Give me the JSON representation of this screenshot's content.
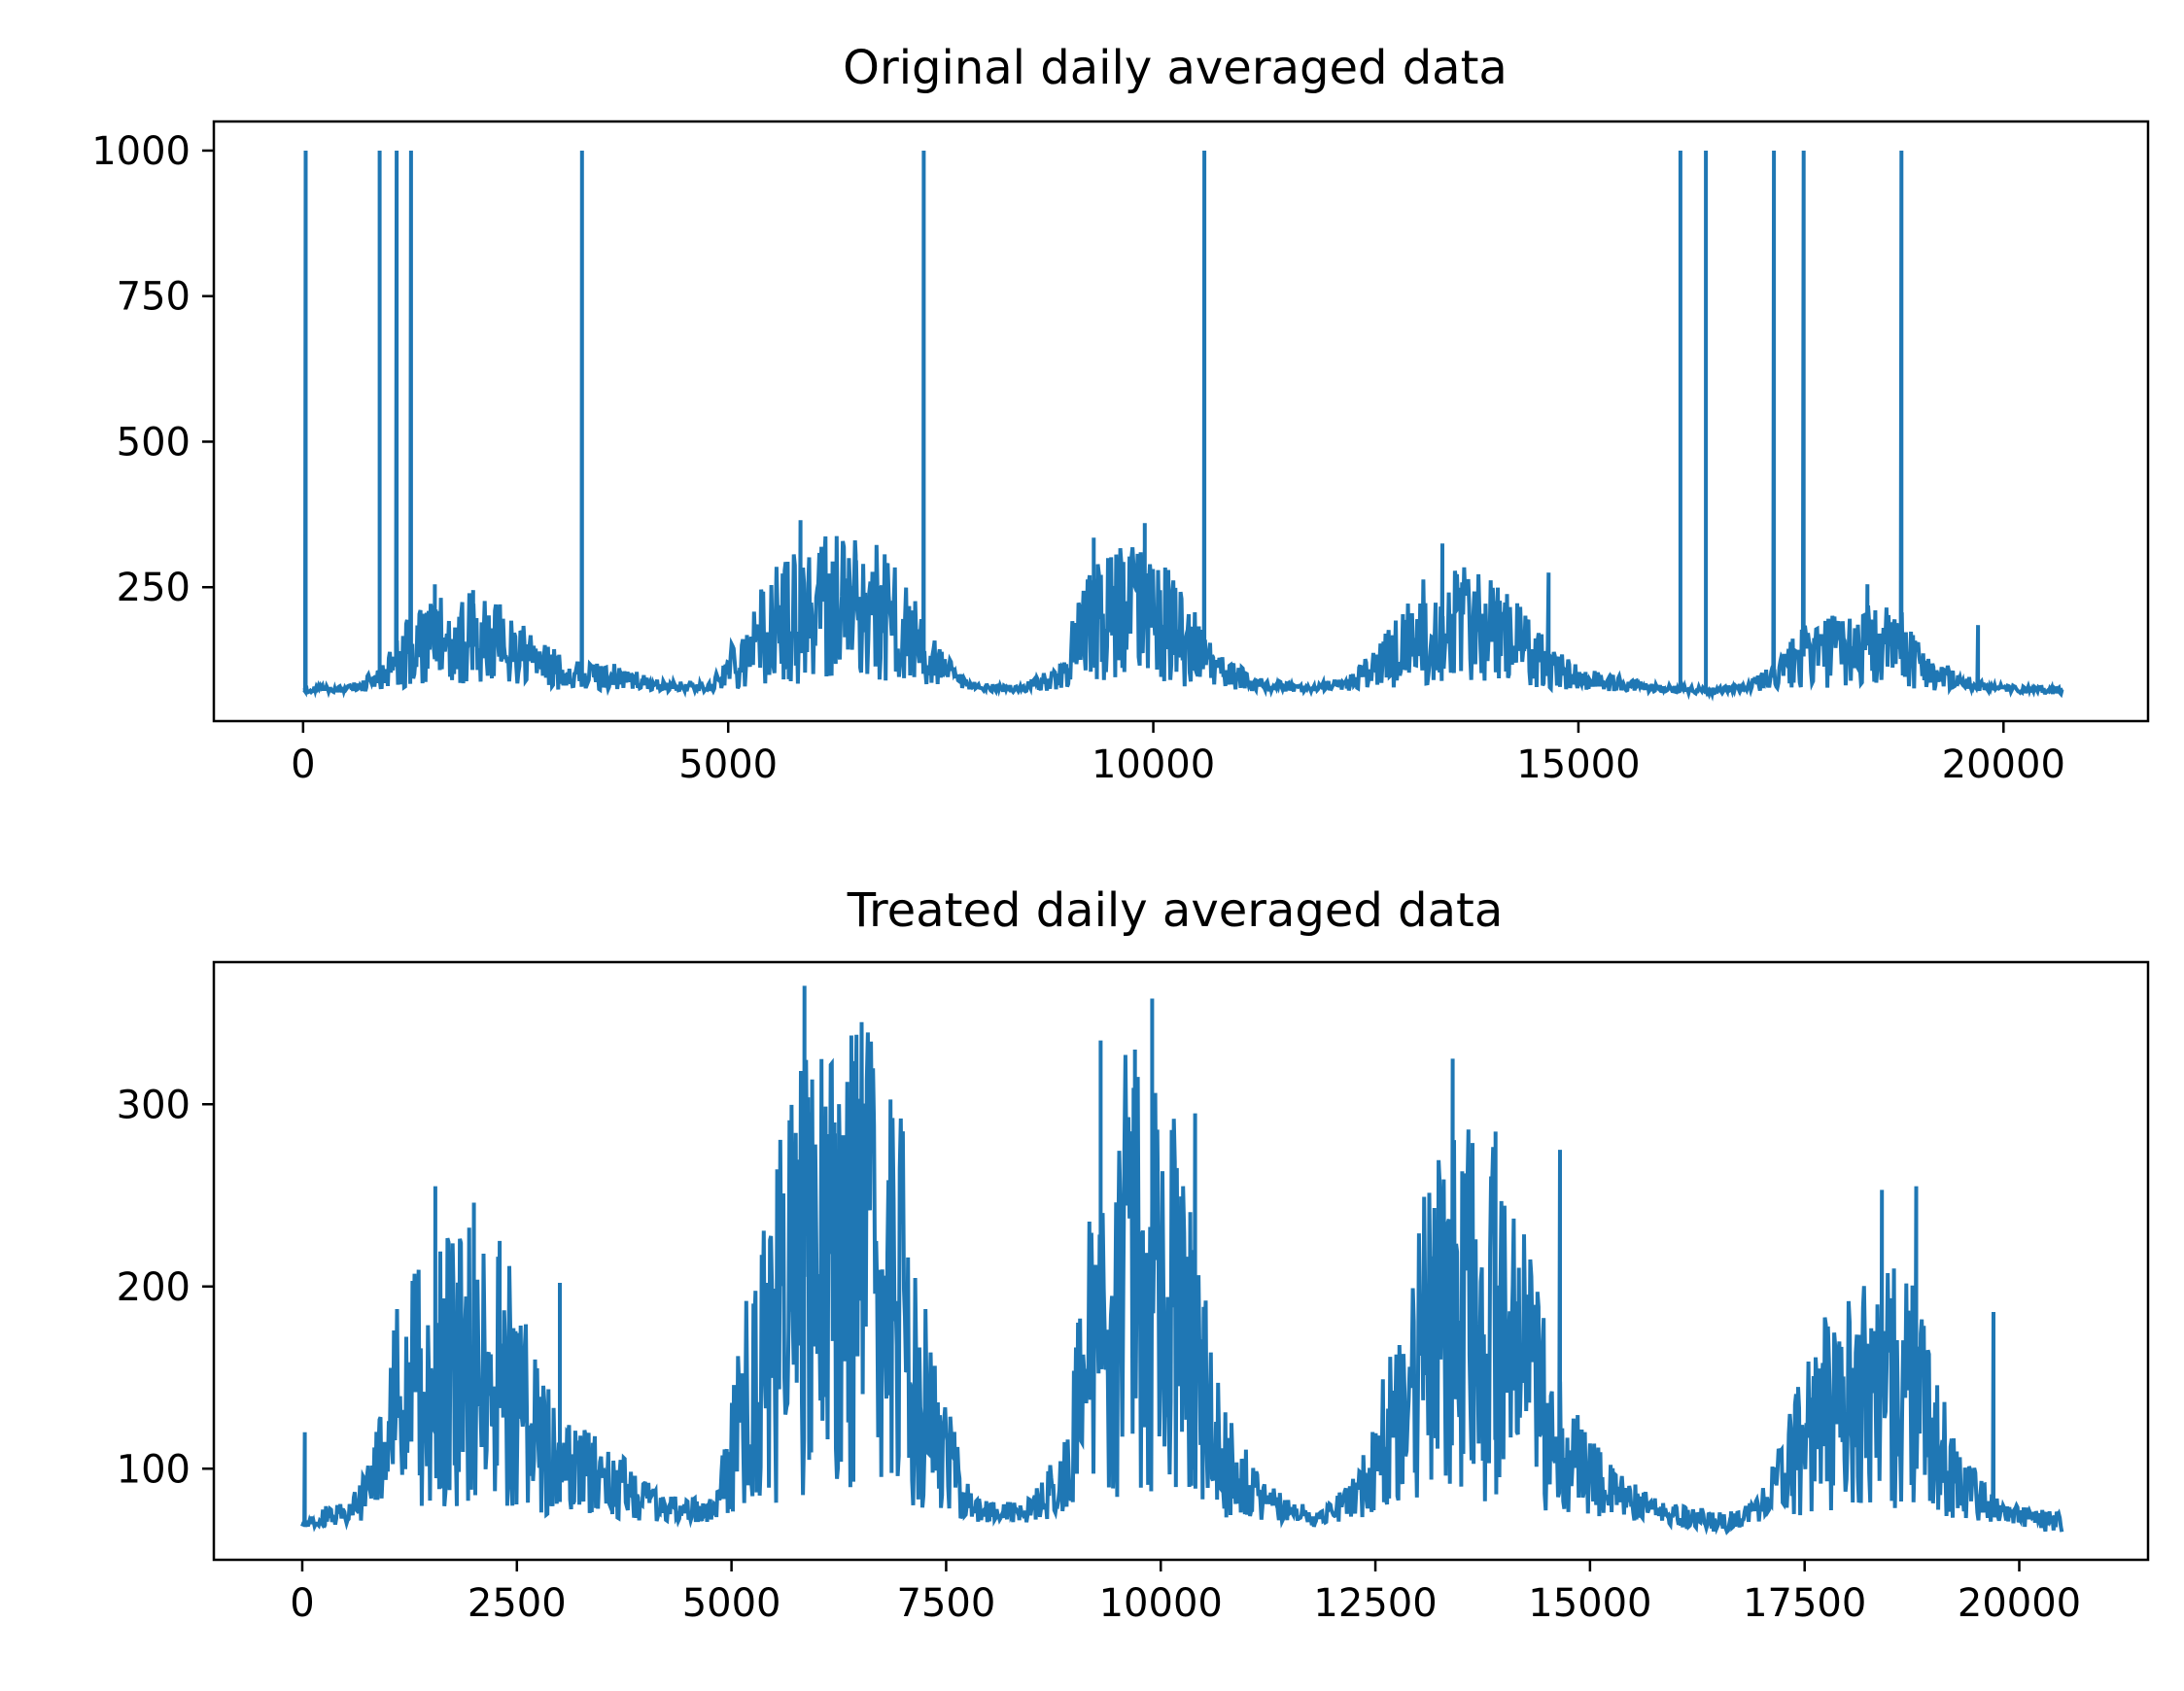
{
  "chart_data": [
    {
      "type": "line",
      "title": "Original daily averaged data",
      "xlabel": "",
      "ylabel": "",
      "xlim": [
        -1050,
        21700
      ],
      "ylim": [
        20,
        1050
      ],
      "xticks": [
        0,
        5000,
        10000,
        15000,
        20000
      ],
      "xtick_labels": [
        "0",
        "5000",
        "10000",
        "15000",
        "20000"
      ],
      "yticks": [
        250,
        500,
        750,
        1000
      ],
      "ytick_labels": [
        "250",
        "500",
        "750",
        "1000"
      ],
      "grid": false,
      "color": "#1f77b4",
      "baseline_points": [
        [
          0,
          75
        ],
        [
          500,
          75
        ],
        [
          900,
          92
        ],
        [
          1200,
          135
        ],
        [
          1600,
          155
        ],
        [
          2000,
          160
        ],
        [
          2400,
          150
        ],
        [
          2800,
          115
        ],
        [
          3200,
          100
        ],
        [
          3700,
          95
        ],
        [
          4200,
          80
        ],
        [
          4800,
          78
        ],
        [
          5200,
          145
        ],
        [
          5600,
          190
        ],
        [
          6000,
          215
        ],
        [
          6500,
          220
        ],
        [
          7000,
          185
        ],
        [
          7400,
          120
        ],
        [
          7800,
          80
        ],
        [
          8400,
          75
        ],
        [
          8900,
          95
        ],
        [
          9200,
          175
        ],
        [
          9600,
          210
        ],
        [
          10000,
          205
        ],
        [
          10400,
          160
        ],
        [
          10700,
          110
        ],
        [
          11200,
          85
        ],
        [
          11800,
          75
        ],
        [
          12300,
          85
        ],
        [
          12700,
          120
        ],
        [
          13100,
          170
        ],
        [
          13500,
          185
        ],
        [
          13900,
          180
        ],
        [
          14300,
          150
        ],
        [
          14700,
          110
        ],
        [
          15200,
          90
        ],
        [
          15700,
          80
        ],
        [
          16200,
          75
        ],
        [
          16600,
          72
        ],
        [
          17000,
          80
        ],
        [
          17300,
          95
        ],
        [
          17600,
          130
        ],
        [
          18000,
          140
        ],
        [
          18400,
          150
        ],
        [
          18800,
          145
        ],
        [
          19200,
          100
        ],
        [
          19700,
          80
        ],
        [
          20200,
          74
        ],
        [
          20700,
          72
        ]
      ],
      "spikes": [
        [
          30,
          1000
        ],
        [
          900,
          1000
        ],
        [
          1100,
          1000
        ],
        [
          1270,
          1000
        ],
        [
          3280,
          1000
        ],
        [
          7300,
          1000
        ],
        [
          10600,
          1000
        ],
        [
          16200,
          1000
        ],
        [
          16500,
          1000
        ],
        [
          17300,
          1000
        ],
        [
          17650,
          1000
        ],
        [
          18800,
          1000
        ],
        [
          5850,
          365
        ],
        [
          9900,
          360
        ],
        [
          9300,
          335
        ],
        [
          13400,
          325
        ],
        [
          6500,
          305
        ],
        [
          14650,
          275
        ],
        [
          18400,
          255
        ],
        [
          1550,
          255
        ],
        [
          2000,
          245
        ],
        [
          19700,
          185
        ]
      ]
    },
    {
      "type": "line",
      "title": "Treated daily averaged data",
      "xlabel": "",
      "ylabel": "",
      "xlim": [
        -1030,
        21500
      ],
      "ylim": [
        50,
        378
      ],
      "xticks": [
        0,
        2500,
        5000,
        7500,
        10000,
        12500,
        15000,
        17500,
        20000
      ],
      "xtick_labels": [
        "0",
        "2500",
        "5000",
        "7500",
        "10000",
        "12500",
        "15000",
        "17500",
        "20000"
      ],
      "yticks": [
        100,
        200,
        300
      ],
      "ytick_labels": [
        "100",
        "200",
        "300"
      ],
      "grid": false,
      "color": "#1f77b4",
      "baseline_points": [
        [
          0,
          72
        ],
        [
          500,
          75
        ],
        [
          800,
          90
        ],
        [
          1100,
          135
        ],
        [
          1500,
          150
        ],
        [
          2000,
          158
        ],
        [
          2400,
          148
        ],
        [
          2800,
          115
        ],
        [
          3200,
          100
        ],
        [
          3700,
          90
        ],
        [
          4200,
          78
        ],
        [
          4800,
          77
        ],
        [
          5200,
          140
        ],
        [
          5600,
          190
        ],
        [
          6000,
          215
        ],
        [
          6500,
          220
        ],
        [
          7000,
          185
        ],
        [
          7400,
          115
        ],
        [
          7800,
          78
        ],
        [
          8400,
          75
        ],
        [
          8900,
          95
        ],
        [
          9200,
          170
        ],
        [
          9600,
          210
        ],
        [
          10000,
          205
        ],
        [
          10400,
          160
        ],
        [
          10700,
          105
        ],
        [
          11200,
          82
        ],
        [
          11800,
          73
        ],
        [
          12300,
          85
        ],
        [
          12700,
          125
        ],
        [
          13100,
          170
        ],
        [
          13500,
          185
        ],
        [
          13900,
          180
        ],
        [
          14300,
          150
        ],
        [
          14700,
          108
        ],
        [
          15200,
          88
        ],
        [
          15700,
          78
        ],
        [
          16200,
          72
        ],
        [
          16600,
          70
        ],
        [
          17000,
          80
        ],
        [
          17300,
          100
        ],
        [
          17600,
          128
        ],
        [
          18000,
          135
        ],
        [
          18400,
          148
        ],
        [
          18800,
          140
        ],
        [
          19200,
          98
        ],
        [
          19700,
          78
        ],
        [
          20200,
          72
        ],
        [
          20500,
          70
        ]
      ],
      "spikes": [
        [
          30,
          120
        ],
        [
          5850,
          365
        ],
        [
          9900,
          358
        ],
        [
          9300,
          335
        ],
        [
          13400,
          325
        ],
        [
          6500,
          303
        ],
        [
          9700,
          330
        ],
        [
          14650,
          275
        ],
        [
          18400,
          253
        ],
        [
          18800,
          255
        ],
        [
          1550,
          255
        ],
        [
          2000,
          246
        ],
        [
          19700,
          186
        ],
        [
          3000,
          202
        ],
        [
          2300,
          225
        ],
        [
          6200,
          290
        ],
        [
          13900,
          285
        ],
        [
          10400,
          295
        ]
      ]
    }
  ]
}
